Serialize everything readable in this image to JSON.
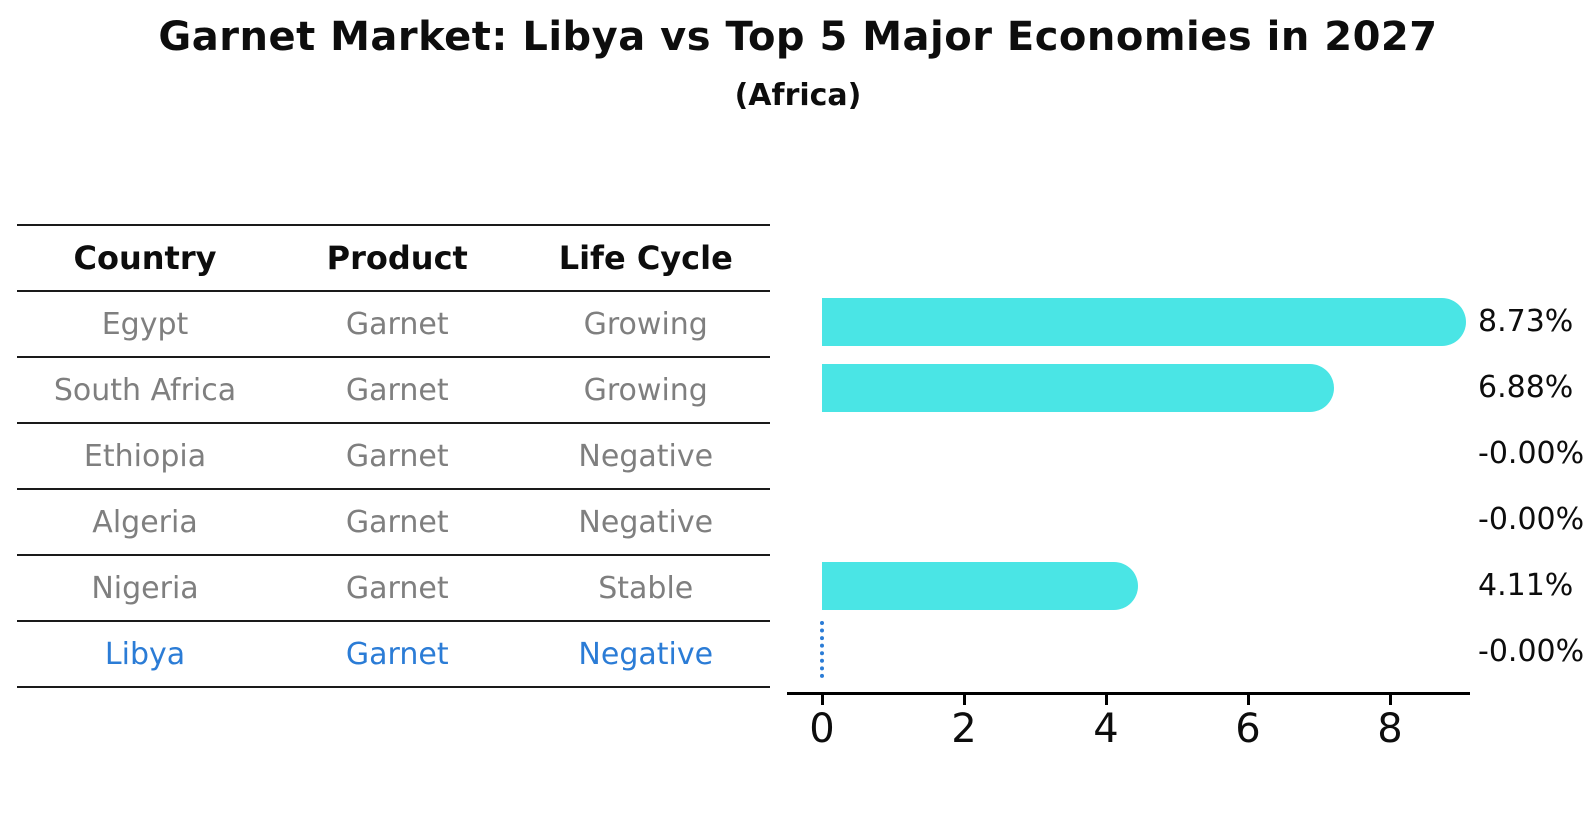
{
  "title": "Garnet Market: Libya vs Top 5 Major Economies in 2027",
  "subtitle": "(Africa)",
  "table": {
    "headers": [
      "Country",
      "Product",
      "Life Cycle"
    ],
    "rows": [
      {
        "country": "Egypt",
        "product": "Garnet",
        "life_cycle": "Growing",
        "highlight": false
      },
      {
        "country": "South Africa",
        "product": "Garnet",
        "life_cycle": "Growing",
        "highlight": false
      },
      {
        "country": "Ethiopia",
        "product": "Garnet",
        "life_cycle": "Negative",
        "highlight": false
      },
      {
        "country": "Algeria",
        "product": "Garnet",
        "life_cycle": "Negative",
        "highlight": false
      },
      {
        "country": "Nigeria",
        "product": "Garnet",
        "life_cycle": "Stable",
        "highlight": false
      },
      {
        "country": "Libya",
        "product": "Garnet",
        "life_cycle": "Negative",
        "highlight": true
      }
    ]
  },
  "chart_data": {
    "type": "bar",
    "orientation": "horizontal",
    "title": "Garnet Market: Libya vs Top 5 Major Economies in 2027 (Africa)",
    "categories": [
      "Egypt",
      "South Africa",
      "Ethiopia",
      "Algeria",
      "Nigeria",
      "Libya"
    ],
    "values": [
      8.73,
      6.88,
      -0.0,
      -0.0,
      4.11,
      -0.0
    ],
    "value_labels": [
      "8.73%",
      "6.88%",
      "-0.00%",
      "-0.00%",
      "4.11%",
      "-0.00%"
    ],
    "xticks": [
      0,
      2,
      4,
      6,
      8
    ],
    "xlim": [
      0,
      9.1
    ],
    "xlabel": "",
    "ylabel": "",
    "grid": false,
    "legend": "none",
    "highlight_index": 5,
    "zero_marker": "dotted line at 0 for Libya"
  },
  "colors": {
    "bar": "#4ae5e5",
    "highlight_blue": "#2b7cd6",
    "row_text_gray": "#7f7f7f",
    "axis_black": "#000000"
  }
}
